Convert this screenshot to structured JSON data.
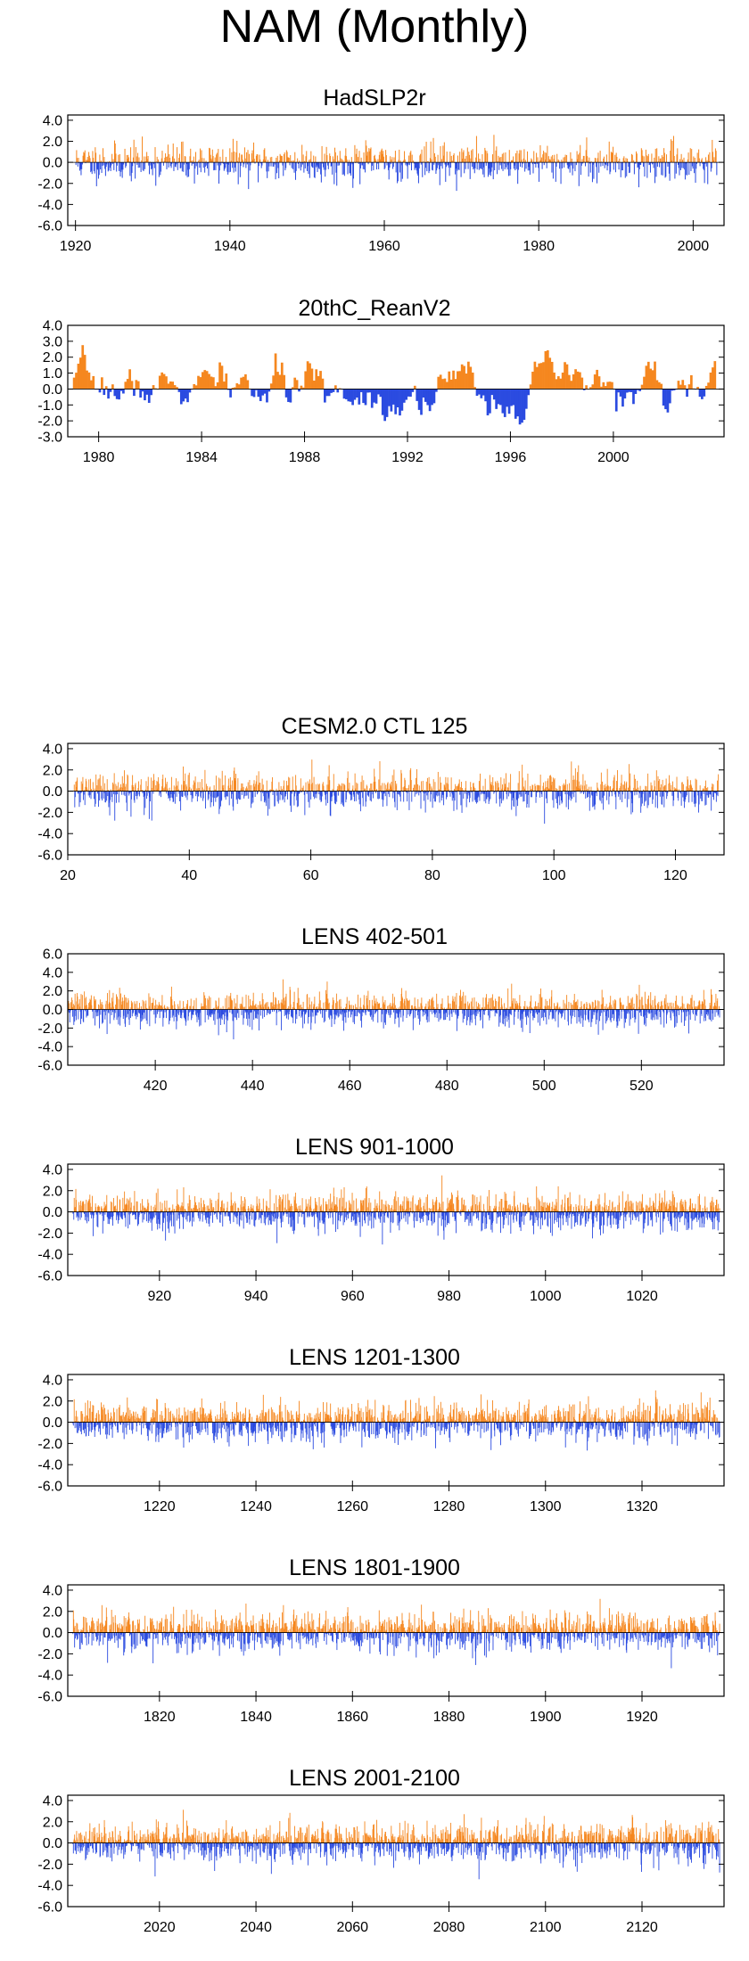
{
  "title": "NAM (Monthly)",
  "colors": {
    "positive": "#f5871f",
    "negative": "#2b4be0",
    "axis": "#000000"
  },
  "chart_data": [
    {
      "type": "bar",
      "title": "HadSLP2r",
      "ylim": [
        -6,
        4.5
      ],
      "yticks": [
        4.0,
        2.0,
        0.0,
        -2.0,
        -4.0,
        -6.0
      ],
      "yticklabels": [
        "4.0",
        "2.0",
        "0.0",
        "-2.0",
        "-4.0",
        "-6.0"
      ],
      "xlim": [
        1919,
        2004
      ],
      "xticks": [
        1920,
        1940,
        1960,
        1980,
        2000
      ],
      "xticklabels": [
        "1920",
        "1940",
        "1960",
        "1980",
        "2000"
      ],
      "x_start": 1920,
      "x_end": 2003,
      "n_values": 996,
      "series_amplitude": 1.0,
      "smooth": 0,
      "seed": 11,
      "xlabel": "",
      "ylabel": ""
    },
    {
      "type": "bar",
      "title": "20thC_ReanV2",
      "ylim": [
        -3,
        4
      ],
      "yticks": [
        4.0,
        3.0,
        2.0,
        1.0,
        0.0,
        -1.0,
        -2.0,
        -3.0
      ],
      "yticklabels": [
        "4.0",
        "3.0",
        "2.0",
        "1.0",
        "0.0",
        "-1.0",
        "-2.0",
        "-3.0"
      ],
      "xlim": [
        1978.8,
        2004.3
      ],
      "xticks": [
        1980,
        1984,
        1988,
        1992,
        1996,
        2000
      ],
      "xticklabels": [
        "1980",
        "1984",
        "1988",
        "1992",
        "1996",
        "2000"
      ],
      "x_start": 1979,
      "x_end": 2003.9,
      "n_values": 300,
      "series_amplitude": 1.0,
      "smooth": 5,
      "seed": 7,
      "xlabel": "",
      "ylabel": ""
    },
    {
      "type": "bar",
      "title": "CESM2.0 CTL 125",
      "ylim": [
        -6,
        4.5
      ],
      "yticks": [
        4.0,
        2.0,
        0.0,
        -2.0,
        -4.0,
        -6.0
      ],
      "yticklabels": [
        "4.0",
        "2.0",
        "0.0",
        "-2.0",
        "-4.0",
        "-6.0"
      ],
      "xlim": [
        20,
        128
      ],
      "xticks": [
        20,
        40,
        60,
        80,
        100,
        120
      ],
      "xticklabels": [
        "20",
        "40",
        "60",
        "80",
        "100",
        "120"
      ],
      "x_start": 21,
      "x_end": 127,
      "n_values": 1272,
      "series_amplitude": 1.0,
      "smooth": 0,
      "seed": 21,
      "xlabel": "",
      "ylabel": ""
    },
    {
      "type": "bar",
      "title": "LENS 402-501",
      "ylim": [
        -6,
        6
      ],
      "yticks": [
        6.0,
        4.0,
        2.0,
        0.0,
        -2.0,
        -4.0,
        -6.0
      ],
      "yticklabels": [
        "6.0",
        "4.0",
        "2.0",
        "0.0",
        "-2.0",
        "-4.0",
        "-6.0"
      ],
      "xlim": [
        402,
        537
      ],
      "xticks": [
        420,
        440,
        460,
        480,
        500,
        520
      ],
      "xticklabels": [
        "420",
        "440",
        "460",
        "480",
        "500",
        "520"
      ],
      "x_start": 402,
      "x_end": 536,
      "n_values": 1608,
      "series_amplitude": 1.0,
      "smooth": 0,
      "seed": 33,
      "xlabel": "",
      "ylabel": ""
    },
    {
      "type": "bar",
      "title": "LENS 901-1000",
      "ylim": [
        -6,
        4.5
      ],
      "yticks": [
        4.0,
        2.0,
        0.0,
        -2.0,
        -4.0,
        -6.0
      ],
      "yticklabels": [
        "4.0",
        "2.0",
        "0.0",
        "-2.0",
        "-4.0",
        "-6.0"
      ],
      "xlim": [
        901,
        1037
      ],
      "xticks": [
        920,
        940,
        960,
        980,
        1000,
        1020
      ],
      "xticklabels": [
        "920",
        "940",
        "960",
        "980",
        "1000",
        "1020"
      ],
      "x_start": 902,
      "x_end": 1036,
      "n_values": 1608,
      "series_amplitude": 1.0,
      "smooth": 0,
      "seed": 44,
      "xlabel": "",
      "ylabel": ""
    },
    {
      "type": "bar",
      "title": "LENS 1201-1300",
      "ylim": [
        -6,
        4.5
      ],
      "yticks": [
        4.0,
        2.0,
        0.0,
        -2.0,
        -4.0,
        -6.0
      ],
      "yticklabels": [
        "4.0",
        "2.0",
        "0.0",
        "-2.0",
        "-4.0",
        "-6.0"
      ],
      "xlim": [
        1201,
        1337
      ],
      "xticks": [
        1220,
        1240,
        1260,
        1280,
        1300,
        1320
      ],
      "xticklabels": [
        "1220",
        "1240",
        "1260",
        "1280",
        "1300",
        "1320"
      ],
      "x_start": 1202,
      "x_end": 1336,
      "n_values": 1608,
      "series_amplitude": 1.0,
      "smooth": 0,
      "seed": 55,
      "xlabel": "",
      "ylabel": ""
    },
    {
      "type": "bar",
      "title": "LENS 1801-1900",
      "ylim": [
        -6,
        4.5
      ],
      "yticks": [
        4.0,
        2.0,
        0.0,
        -2.0,
        -4.0,
        -6.0
      ],
      "yticklabels": [
        "4.0",
        "2.0",
        "0.0",
        "-2.0",
        "-4.0",
        "-6.0"
      ],
      "xlim": [
        1801,
        1937
      ],
      "xticks": [
        1820,
        1840,
        1860,
        1880,
        1900,
        1920
      ],
      "xticklabels": [
        "1820",
        "1840",
        "1860",
        "1880",
        "1900",
        "1920"
      ],
      "x_start": 1802,
      "x_end": 1936,
      "n_values": 1608,
      "series_amplitude": 1.0,
      "smooth": 0,
      "seed": 66,
      "xlabel": "",
      "ylabel": ""
    },
    {
      "type": "bar",
      "title": "LENS 2001-2100",
      "ylim": [
        -6,
        4.5
      ],
      "yticks": [
        4.0,
        2.0,
        0.0,
        -2.0,
        -4.0,
        -6.0
      ],
      "yticklabels": [
        "4.0",
        "2.0",
        "0.0",
        "-2.0",
        "-4.0",
        "-6.0"
      ],
      "xlim": [
        2001,
        2137
      ],
      "xticks": [
        2020,
        2040,
        2060,
        2080,
        2100,
        2120
      ],
      "xticklabels": [
        "2020",
        "2040",
        "2060",
        "2080",
        "2100",
        "2120"
      ],
      "x_start": 2002,
      "x_end": 2136,
      "n_values": 1608,
      "series_amplitude": 1.0,
      "smooth": 0,
      "seed": 77,
      "xlabel": "",
      "ylabel": ""
    }
  ]
}
